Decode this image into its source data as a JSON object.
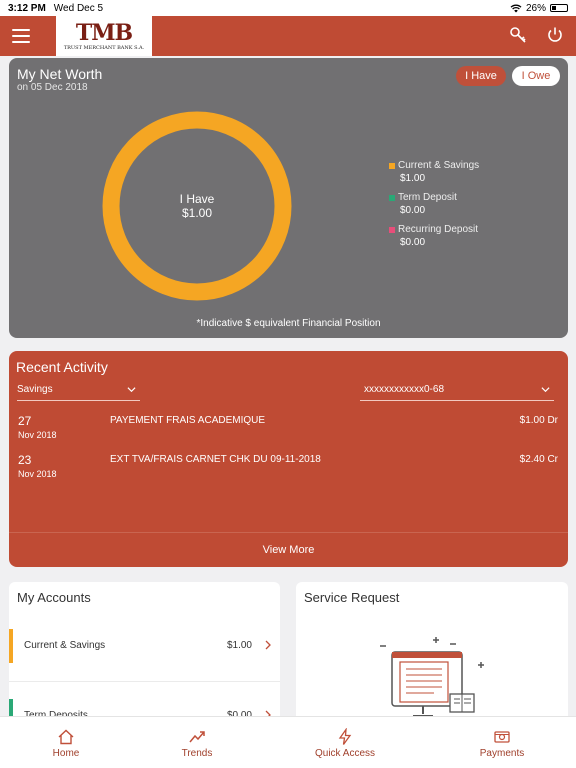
{
  "status_bar": {
    "time": "3:12 PM",
    "date": "Wed Dec 5",
    "battery": "26%"
  },
  "header": {
    "logo_text": "TMB",
    "logo_tagline": "TRUST MERCHANT BANK S.A."
  },
  "net_worth": {
    "title": "My Net Worth",
    "date": "on 05 Dec 2018",
    "toggle_have": "I Have",
    "toggle_owe": "I Owe",
    "center_label": "I Have",
    "center_value": "$1.00",
    "legend": [
      {
        "label": "Current & Savings",
        "value": "$1.00",
        "color": "#f5a623"
      },
      {
        "label": "Term Deposit",
        "value": "$0.00",
        "color": "#2aa876"
      },
      {
        "label": "Recurring Deposit",
        "value": "$0.00",
        "color": "#e84e7a"
      }
    ],
    "donut_color": "#f5a623",
    "footnote": "*Indicative $ equivalent Financial Position"
  },
  "recent_activity": {
    "title": "Recent Activity",
    "type_select": "Savings",
    "account_select": "xxxxxxxxxxxx0-68",
    "transactions": [
      {
        "day": "27",
        "month_year": "Nov 2018",
        "description": "PAYEMENT FRAIS ACADEMIQUE",
        "amount": "$1.00 Dr"
      },
      {
        "day": "23",
        "month_year": "Nov 2018",
        "description": "EXT TVA/FRAIS CARNET CHK DU 09-11-2018",
        "amount": "$2.40 Cr"
      }
    ],
    "view_more": "View More"
  },
  "my_accounts": {
    "title": "My Accounts",
    "rows": [
      {
        "name": "Current & Savings",
        "value": "$1.00",
        "color": "#f5a623"
      },
      {
        "name": "Term Deposits",
        "value": "$0.00",
        "color": "#2aa876"
      }
    ]
  },
  "service_request": {
    "title": "Service Request"
  },
  "tabbar": {
    "tabs": [
      {
        "label": "Home",
        "icon": "home-icon"
      },
      {
        "label": "Trends",
        "icon": "trends-icon"
      },
      {
        "label": "Quick Access",
        "icon": "lightning-icon"
      },
      {
        "label": "Payments",
        "icon": "payments-icon"
      }
    ]
  },
  "colors": {
    "brand": "#bf4b34",
    "card_grey": "#717072"
  }
}
